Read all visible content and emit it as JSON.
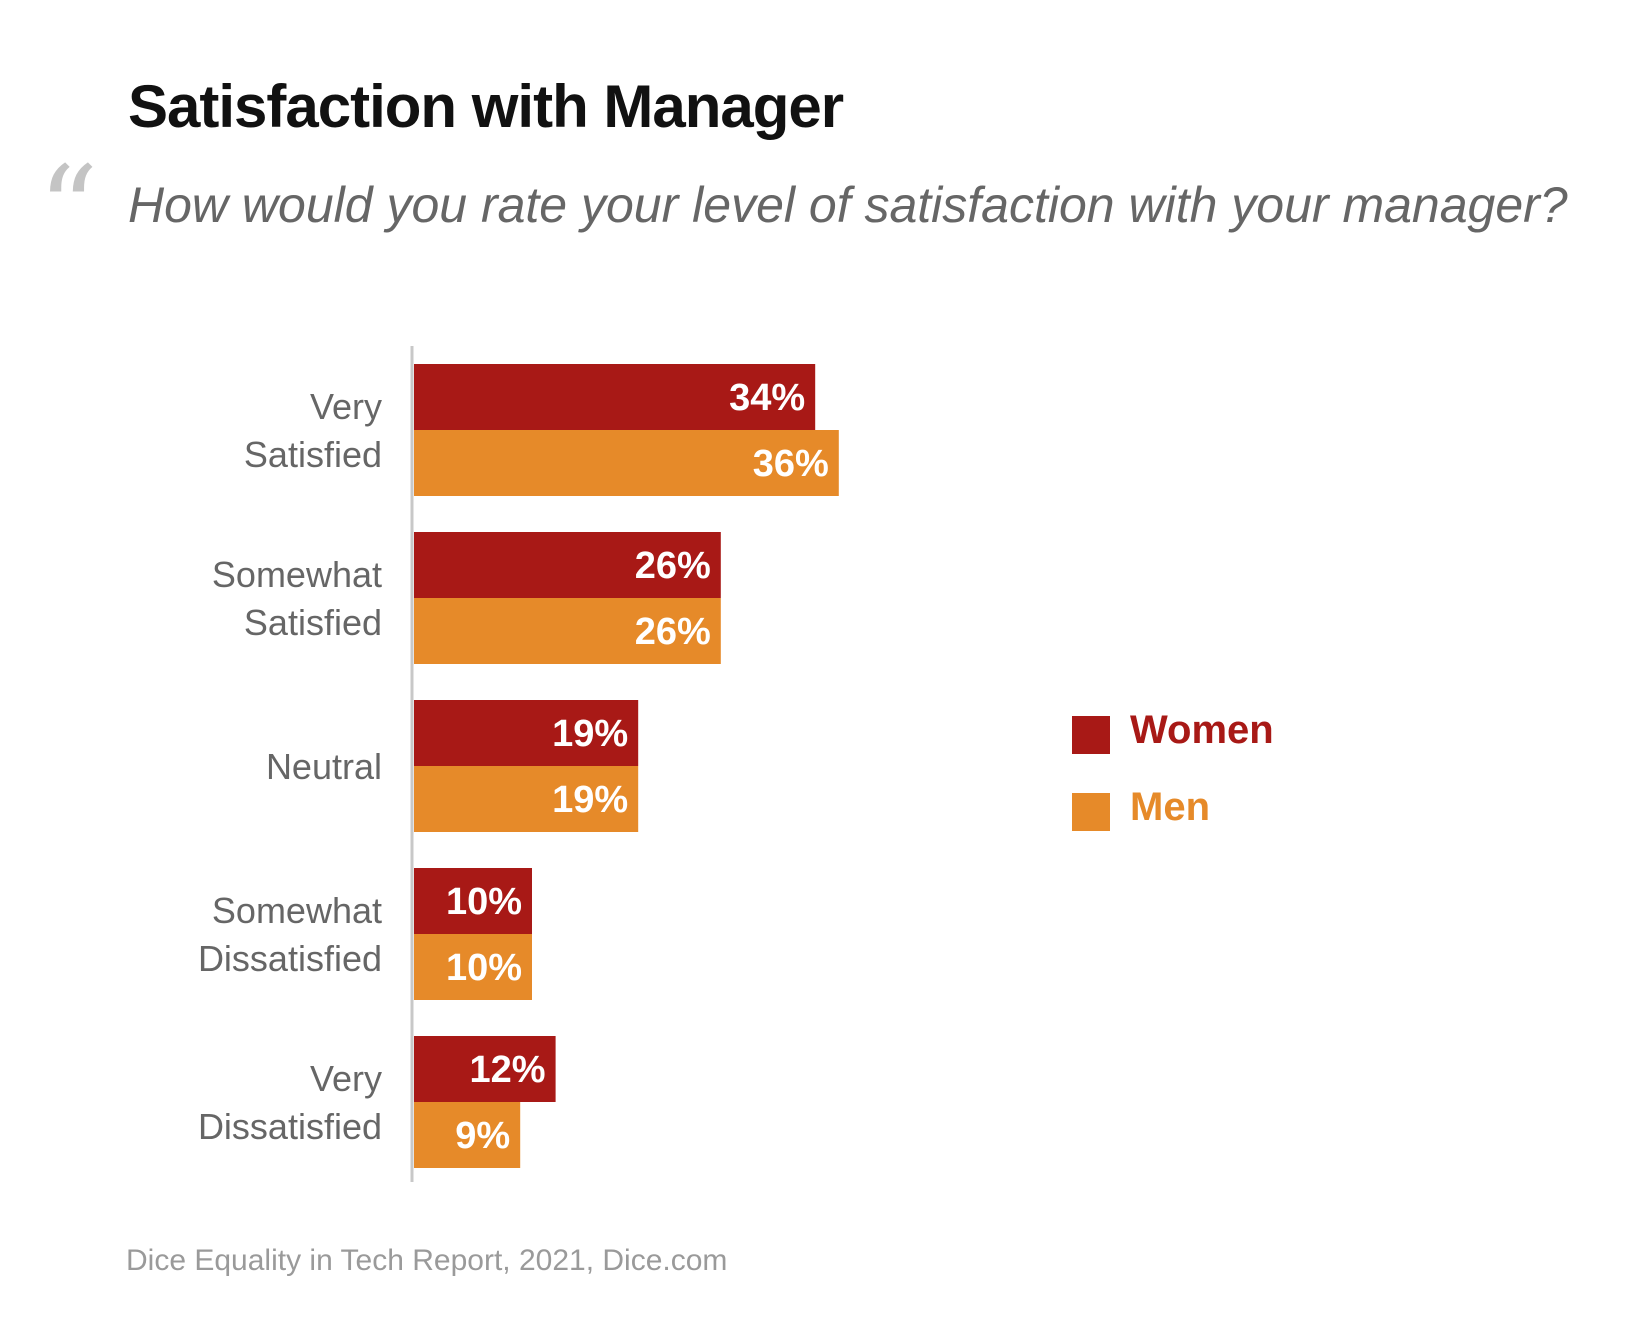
{
  "header": {
    "title": "Satisfaction with Manager",
    "quote_mark": "“",
    "question": "How would you rate your level of satisfaction with your manager?"
  },
  "source": "Dice Equality in Tech Report, 2021, Dice.com",
  "colors": {
    "women": "#a81916",
    "men": "#e68a29",
    "axis": "#c8c8c8"
  },
  "chart_data": {
    "type": "bar",
    "orientation": "horizontal",
    "categories": [
      [
        "Very",
        "Satisfied"
      ],
      [
        "Somewhat",
        "Satisfied"
      ],
      [
        "Neutral"
      ],
      [
        "Somewhat",
        "Dissatisfied"
      ],
      [
        "Very",
        "Dissatisfied"
      ]
    ],
    "series": [
      {
        "name": "Women",
        "values": [
          34,
          26,
          19,
          10,
          12
        ],
        "labels": [
          "34%",
          "26%",
          "19%",
          "10%",
          "12%"
        ]
      },
      {
        "name": "Men",
        "values": [
          36,
          26,
          19,
          10,
          9
        ],
        "labels": [
          "36%",
          "26%",
          "19%",
          "10%",
          "9%"
        ]
      }
    ],
    "unit": "%",
    "xlim": [
      0,
      36
    ],
    "grid": false,
    "legend_position": "right"
  }
}
